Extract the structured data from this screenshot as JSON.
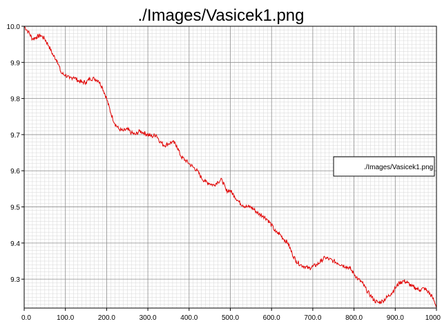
{
  "chart_data": {
    "type": "line",
    "title": "./Images/Vasicek1.png",
    "xlabel": "",
    "ylabel": "",
    "xlim": [
      0,
      1000
    ],
    "ylim": [
      9.22,
      10.0
    ],
    "grid": true,
    "legend_position": "right",
    "xticks": [
      0,
      100,
      200,
      300,
      400,
      500,
      600,
      700,
      800,
      900,
      1000
    ],
    "xtick_labels": [
      "0.0",
      "100.0",
      "200.0",
      "300.0",
      "400.0",
      "500.0",
      "600.0",
      "700.0",
      "800.0",
      "900.0",
      "1000"
    ],
    "yticks": [
      9.3,
      9.4,
      9.5,
      9.6,
      9.7,
      9.8,
      9.9,
      10.0
    ],
    "ytick_labels": [
      "9.3",
      "9.4",
      "9.5",
      "9.6",
      "9.7",
      "9.8",
      "9.9",
      "10.0"
    ],
    "series": [
      {
        "name": "./Images/Vasicek1.png",
        "color": "#e00000",
        "x": [
          0,
          10,
          20,
          30,
          40,
          50,
          60,
          70,
          80,
          90,
          100,
          110,
          120,
          130,
          140,
          150,
          160,
          170,
          180,
          190,
          200,
          210,
          220,
          230,
          240,
          250,
          260,
          270,
          280,
          290,
          300,
          310,
          320,
          330,
          340,
          350,
          360,
          370,
          380,
          390,
          400,
          410,
          420,
          430,
          440,
          450,
          460,
          470,
          480,
          490,
          500,
          510,
          520,
          530,
          540,
          550,
          560,
          570,
          580,
          590,
          600,
          610,
          620,
          630,
          640,
          650,
          660,
          670,
          680,
          690,
          700,
          710,
          720,
          730,
          740,
          750,
          760,
          770,
          780,
          790,
          800,
          810,
          820,
          830,
          840,
          850,
          860,
          870,
          880,
          890,
          900,
          910,
          920,
          930,
          940,
          950,
          960,
          970,
          980,
          990,
          1000
        ],
        "y": [
          10.0,
          9.985,
          9.965,
          9.97,
          9.975,
          9.965,
          9.945,
          9.92,
          9.905,
          9.87,
          9.865,
          9.855,
          9.86,
          9.85,
          9.845,
          9.845,
          9.855,
          9.855,
          9.85,
          9.83,
          9.8,
          9.76,
          9.73,
          9.715,
          9.71,
          9.715,
          9.705,
          9.7,
          9.71,
          9.705,
          9.7,
          9.695,
          9.7,
          9.68,
          9.67,
          9.675,
          9.68,
          9.67,
          9.64,
          9.63,
          9.62,
          9.61,
          9.6,
          9.58,
          9.57,
          9.565,
          9.56,
          9.57,
          9.575,
          9.545,
          9.545,
          9.53,
          9.515,
          9.505,
          9.5,
          9.5,
          9.49,
          9.48,
          9.475,
          9.465,
          9.45,
          9.43,
          9.425,
          9.41,
          9.4,
          9.37,
          9.35,
          9.34,
          9.335,
          9.33,
          9.335,
          9.34,
          9.35,
          9.36,
          9.355,
          9.35,
          9.345,
          9.34,
          9.335,
          9.33,
          9.315,
          9.3,
          9.29,
          9.27,
          9.255,
          9.24,
          9.235,
          9.24,
          9.25,
          9.26,
          9.275,
          9.29,
          9.295,
          9.29,
          9.28,
          9.275,
          9.27,
          9.275,
          9.265,
          9.25,
          9.225
        ]
      }
    ]
  }
}
